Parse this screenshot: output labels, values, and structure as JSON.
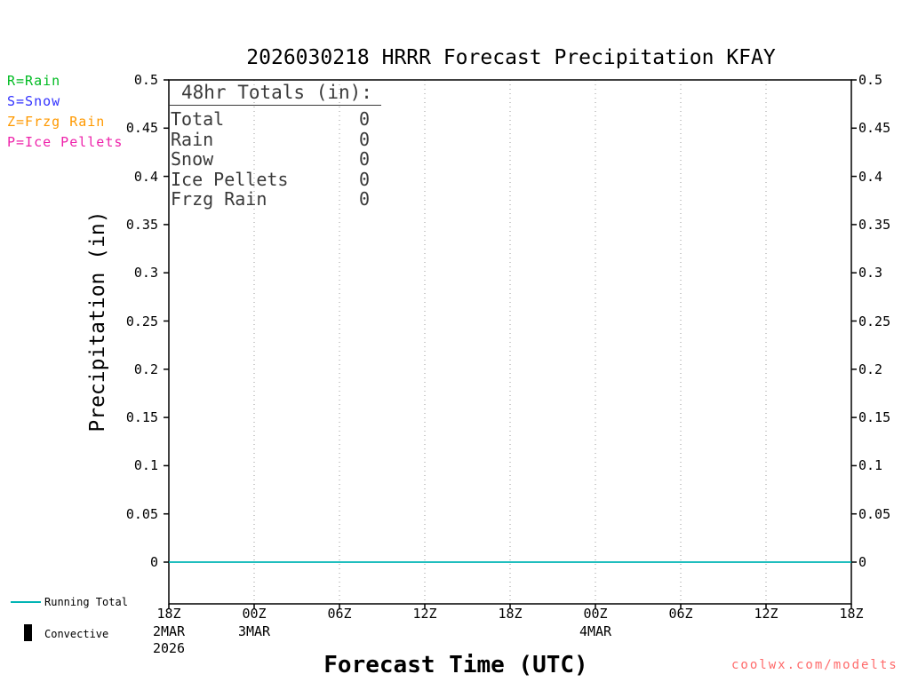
{
  "title": "2026030218 HRRR Forecast Precipitation KFAY",
  "legend_top_left": {
    "items": [
      {
        "label": "R=Rain",
        "color": "#00bb22"
      },
      {
        "label": "S=Snow",
        "color": "#3333ff"
      },
      {
        "label": "Z=Frzg Rain",
        "color": "#ff9900"
      },
      {
        "label": "P=Ice Pellets",
        "color": "#ee22aa"
      }
    ]
  },
  "totals_box": {
    "heading": "48hr Totals (in):",
    "rows": [
      {
        "label": "Total",
        "value": "0"
      },
      {
        "label": "Rain",
        "value": "0"
      },
      {
        "label": "Snow",
        "value": "0"
      },
      {
        "label": "Ice Pellets",
        "value": "0"
      },
      {
        "label": "Frzg Rain",
        "value": "0"
      }
    ]
  },
  "bottom_legend": {
    "items": [
      {
        "label": "Running Total",
        "swatch": "line",
        "color": "#00b4b4"
      },
      {
        "label": "Convective",
        "swatch": "bar",
        "color": "#000000"
      }
    ]
  },
  "watermark": "coolwx.com/modelts",
  "watermark_color": "#ff6a6a",
  "chart_data": {
    "type": "line",
    "title": "2026030218 HRRR Forecast Precipitation KFAY",
    "xlabel": "Forecast Time (UTC)",
    "ylabel": "Precipitation (in)",
    "ylim": [
      0,
      0.5
    ],
    "ytick_step": 0.05,
    "ytick_values": [
      0,
      0.05,
      0.1,
      0.15,
      0.2,
      0.25,
      0.3,
      0.35,
      0.4,
      0.45,
      0.5
    ],
    "ytick_labels": [
      "0",
      "0.05",
      "0.1",
      "0.15",
      "0.2",
      "0.25",
      "0.3",
      "0.35",
      "0.4",
      "0.45",
      "0.5"
    ],
    "xtick_labels": [
      "18Z",
      "00Z",
      "06Z",
      "12Z",
      "18Z",
      "00Z",
      "06Z",
      "12Z",
      "18Z"
    ],
    "x_date_labels": [
      {
        "tick_index": 0,
        "lines": [
          "2MAR",
          "2026"
        ]
      },
      {
        "tick_index": 1,
        "lines": [
          "3MAR"
        ]
      },
      {
        "tick_index": 5,
        "lines": [
          "4MAR"
        ]
      }
    ],
    "grid": "vertical-dotted",
    "grid_color": "#999999",
    "legend_position": "bottom-left",
    "series": [
      {
        "name": "Running Total",
        "color": "#00b4b4",
        "values": [
          0,
          0,
          0,
          0,
          0,
          0,
          0,
          0,
          0
        ]
      }
    ],
    "totals_48hr_in": {
      "Total": 0,
      "Rain": 0,
      "Snow": 0,
      "Ice Pellets": 0,
      "Frzg Rain": 0
    }
  }
}
